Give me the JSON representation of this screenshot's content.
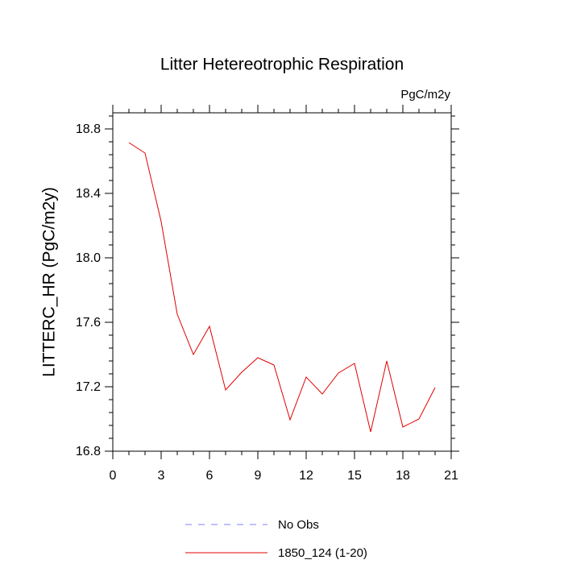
{
  "chart_data": {
    "type": "line",
    "title": "Litter Hetereotrophic Respiration",
    "annotation": "PgC/m2y",
    "ylabel": "LITTERC_HR  (PgC/m2y)",
    "x": [
      1,
      2,
      3,
      4,
      5,
      6,
      7,
      8,
      9,
      10,
      11,
      12,
      13,
      14,
      15,
      16,
      17,
      18,
      19,
      20
    ],
    "series": [
      {
        "name": "No Obs",
        "color": "#8080ff",
        "dashed": true,
        "values": [
          null,
          null,
          null,
          null,
          null,
          null,
          null,
          null,
          null,
          null,
          null,
          null,
          null,
          null,
          null,
          null,
          null,
          null,
          null,
          null
        ]
      },
      {
        "name": "1850_124 (1-20)",
        "color": "#e00000",
        "dashed": false,
        "values": [
          18.715,
          18.65,
          18.225,
          17.65,
          17.4,
          17.575,
          17.18,
          17.29,
          17.38,
          17.335,
          16.995,
          17.26,
          17.155,
          17.285,
          17.345,
          16.92,
          17.36,
          16.95,
          17.0,
          17.195
        ]
      }
    ],
    "xlim": [
      0,
      21
    ],
    "xticks": [
      0,
      3,
      6,
      9,
      12,
      15,
      18,
      21
    ],
    "xminorticks": [
      1,
      2,
      4,
      5,
      7,
      8,
      10,
      11,
      13,
      14,
      16,
      17,
      19,
      20
    ],
    "ylim": [
      16.8,
      18.9
    ],
    "yticks": [
      16.8,
      17.2,
      17.6,
      {
        "value": 18,
        "label": "18.0"
      },
      18.4,
      18.8
    ],
    "yminorticks": [
      16.88,
      16.96,
      17.04,
      17.12,
      17.28,
      17.36,
      17.44,
      17.52,
      17.68,
      17.76,
      17.84,
      17.92,
      18.08,
      18.16,
      18.24,
      18.32,
      18.48,
      18.56,
      18.64,
      18.72,
      18.88
    ]
  }
}
